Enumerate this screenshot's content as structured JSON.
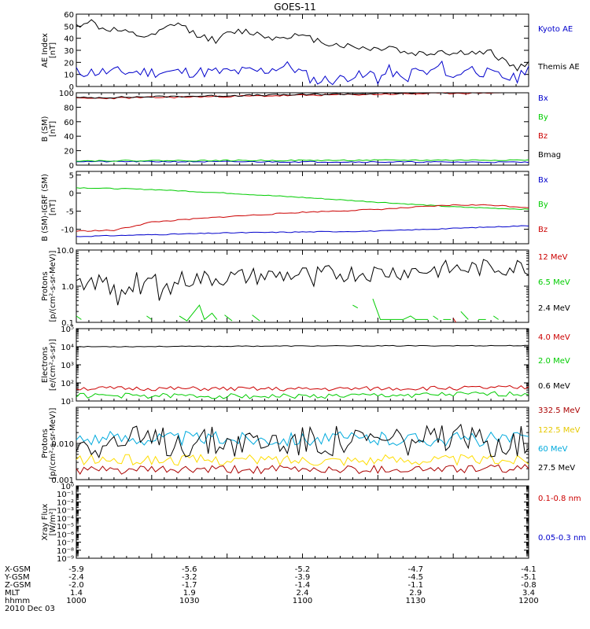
{
  "title": "GOES-11",
  "chart_data": [
    {
      "type": "line",
      "ylabel": "AE Index\n[nT]",
      "ylim": [
        0,
        60
      ],
      "ticks": [
        {
          "v": 0,
          "label": "0"
        },
        {
          "v": 10,
          "label": "10"
        },
        {
          "v": 20,
          "label": "20"
        },
        {
          "v": 30,
          "label": "30"
        },
        {
          "v": 40,
          "label": "40"
        },
        {
          "v": 50,
          "label": "50"
        },
        {
          "v": 60,
          "label": "60"
        }
      ],
      "series": [
        {
          "name": "Kyoto AE",
          "color": "#0000cc",
          "anchors": [
            [
              0,
              12
            ],
            [
              15,
              12
            ],
            [
              30,
              12
            ],
            [
              45,
              12
            ],
            [
              60,
              12
            ],
            [
              75,
              13
            ],
            [
              80,
              16
            ],
            [
              85,
              17
            ],
            [
              90,
              11
            ],
            [
              95,
              5
            ],
            [
              105,
              6
            ],
            [
              110,
              10
            ],
            [
              115,
              7
            ],
            [
              118,
              13
            ],
            [
              120,
              6
            ],
            [
              125,
              14
            ],
            [
              130,
              4
            ],
            [
              135,
              14
            ],
            [
              140,
              10
            ],
            [
              145,
              18
            ],
            [
              150,
              6
            ],
            [
              155,
              16
            ],
            [
              160,
              13
            ],
            [
              165,
              10
            ],
            [
              170,
              8
            ],
            [
              175,
              6
            ],
            [
              180,
              18
            ]
          ],
          "noise": 2.0,
          "seed": 11
        },
        {
          "name": "Themis AE",
          "color": "#000000",
          "anchors": [
            [
              0,
              50
            ],
            [
              5,
              55
            ],
            [
              10,
              48
            ],
            [
              15,
              47
            ],
            [
              20,
              44
            ],
            [
              25,
              42
            ],
            [
              30,
              41
            ],
            [
              35,
              47
            ],
            [
              40,
              53
            ],
            [
              45,
              46
            ],
            [
              50,
              42
            ],
            [
              55,
              38
            ],
            [
              60,
              43
            ],
            [
              65,
              46
            ],
            [
              70,
              45
            ],
            [
              75,
              42
            ],
            [
              80,
              40
            ],
            [
              85,
              43
            ],
            [
              90,
              41
            ],
            [
              95,
              39
            ],
            [
              100,
              36
            ],
            [
              110,
              33
            ],
            [
              120,
              31
            ],
            [
              125,
              34
            ],
            [
              130,
              28
            ],
            [
              140,
              27
            ],
            [
              145,
              30
            ],
            [
              150,
              27
            ],
            [
              155,
              29
            ],
            [
              160,
              27
            ],
            [
              165,
              28
            ],
            [
              170,
              22
            ],
            [
              175,
              15
            ],
            [
              180,
              18
            ]
          ],
          "noise": 1.2,
          "seed": 12
        }
      ]
    },
    {
      "type": "line",
      "ylabel": "B (SM)\n[nT]",
      "ylim": [
        0,
        100
      ],
      "ticks": [
        {
          "v": 0,
          "label": "0"
        },
        {
          "v": 20,
          "label": "20"
        },
        {
          "v": 40,
          "label": "40"
        },
        {
          "v": 60,
          "label": "60"
        },
        {
          "v": 80,
          "label": "80"
        },
        {
          "v": 100,
          "label": "100"
        }
      ],
      "series": [
        {
          "name": "Bx",
          "color": "#0000cc",
          "anchors": [
            [
              0,
              5
            ],
            [
              180,
              4
            ]
          ],
          "noise": 0.2,
          "seed": 21
        },
        {
          "name": "By",
          "color": "#00cc00",
          "anchors": [
            [
              0,
              6
            ],
            [
              180,
              7
            ]
          ],
          "noise": 0.2,
          "seed": 22
        },
        {
          "name": "Bz",
          "color": "#cc0000",
          "anchors": [
            [
              0,
              92
            ],
            [
              60,
              95
            ],
            [
              120,
              98
            ],
            [
              180,
              101
            ]
          ],
          "noise": 0.3,
          "seed": 23
        },
        {
          "name": "Bmag",
          "color": "#000000",
          "anchors": [
            [
              0,
              93
            ],
            [
              60,
              96
            ],
            [
              120,
              99
            ],
            [
              180,
              102
            ]
          ],
          "noise": 0.3,
          "seed": 24
        }
      ]
    },
    {
      "type": "line",
      "ylabel": "B (SM)-IGRF (SM)\n[nT]",
      "ylim": [
        -14,
        6
      ],
      "ticks": [
        {
          "v": -10,
          "label": "-10"
        },
        {
          "v": -5,
          "label": "-5"
        },
        {
          "v": 0,
          "label": "0"
        },
        {
          "v": 5,
          "label": "5"
        }
      ],
      "series": [
        {
          "name": "Bx",
          "color": "#0000cc",
          "anchors": [
            [
              0,
              -12
            ],
            [
              60,
              -11
            ],
            [
              120,
              -10.5
            ],
            [
              180,
              -9
            ]
          ],
          "noise": 0.15,
          "seed": 31
        },
        {
          "name": "By",
          "color": "#00cc00",
          "anchors": [
            [
              0,
              1.5
            ],
            [
              30,
              1.0
            ],
            [
              60,
              0
            ],
            [
              90,
              -1.2
            ],
            [
              120,
              -2.5
            ],
            [
              150,
              -3.8
            ],
            [
              180,
              -4.5
            ]
          ],
          "noise": 0.15,
          "seed": 32
        },
        {
          "name": "Bz",
          "color": "#cc0000",
          "anchors": [
            [
              0,
              -10.5
            ],
            [
              15,
              -10.3
            ],
            [
              30,
              -8
            ],
            [
              60,
              -6.5
            ],
            [
              90,
              -5.3
            ],
            [
              120,
              -4.5
            ],
            [
              150,
              -3.3
            ],
            [
              165,
              -3.3
            ],
            [
              180,
              -4
            ]
          ],
          "noise": 0.2,
          "seed": 33
        }
      ]
    },
    {
      "type": "line",
      "log": true,
      "ylabel": "Protons\n[p/(cm²-s-sr-MeV)]",
      "ylim": [
        0.1,
        10
      ],
      "ticks": [
        {
          "v": 0.1,
          "label": "0.1"
        },
        {
          "v": 1,
          "label": "1.0"
        },
        {
          "v": 10,
          "label": "10.0"
        }
      ],
      "series": [
        {
          "name": "12 MeV",
          "color": "#cc0000",
          "segments": [
            [
              [
                150,
                0.13
              ],
              [
                151,
                0.1
              ]
            ]
          ]
        },
        {
          "name": "6.5 MeV",
          "color": "#00cc00",
          "segments": [
            [
              [
                0,
                0.15
              ],
              [
                2,
                0.12
              ]
            ],
            [
              [
                28,
                0.15
              ],
              [
                30,
                0.12
              ]
            ],
            [
              [
                41,
                0.15
              ],
              [
                44,
                0.11
              ],
              [
                47,
                0.2
              ],
              [
                49,
                0.3
              ],
              [
                51,
                0.12
              ],
              [
                54,
                0.18
              ],
              [
                56,
                0.12
              ]
            ],
            [
              [
                59,
                0.16
              ],
              [
                62,
                0.11
              ]
            ],
            [
              [
                70,
                0.16
              ],
              [
                73,
                0.11
              ]
            ],
            [
              [
                110,
                0.3
              ],
              [
                112,
                0.25
              ]
            ],
            [
              [
                118,
                0.45
              ],
              [
                121,
                0.12
              ],
              [
                130,
                0.12
              ],
              [
                133,
                0.15
              ],
              [
                135,
                0.12
              ],
              [
                140,
                0.12
              ]
            ],
            [
              [
                142,
                0.15
              ],
              [
                144,
                0.12
              ]
            ],
            [
              [
                146,
                0.12
              ],
              [
                149,
                0.12
              ]
            ],
            [
              [
                153,
                0.2
              ],
              [
                156,
                0.12
              ]
            ],
            [
              [
                160,
                0.12
              ],
              [
                163,
                0.12
              ]
            ],
            [
              [
                166,
                0.15
              ],
              [
                168,
                0.12
              ]
            ]
          ]
        },
        {
          "name": "2.4 MeV",
          "color": "#000000",
          "anchors": [
            [
              0,
              1.2
            ],
            [
              40,
              1.5
            ],
            [
              80,
              2.0
            ],
            [
              120,
              2.4
            ],
            [
              150,
              3.0
            ],
            [
              180,
              3.5
            ]
          ],
          "noise": 0.25,
          "log": true,
          "dips": [
            [
              3,
              0.8
            ],
            [
              10,
              0.5
            ],
            [
              14,
              0.6
            ],
            [
              17,
              0.3
            ],
            [
              20,
              0.6
            ],
            [
              23,
              0.7
            ],
            [
              26,
              0.6
            ],
            [
              33,
              0.4
            ],
            [
              38,
              0.6
            ],
            [
              46,
              0.8
            ],
            [
              58,
              0.8
            ],
            [
              70,
              0.7
            ],
            [
              82,
              0.9
            ],
            [
              95,
              1.0
            ]
          ],
          "seed": 43
        }
      ]
    },
    {
      "type": "line",
      "log": true,
      "ylabel": "Electrons\n[e/(cm²-s-sr)]",
      "ylim": [
        10,
        100000
      ],
      "ticks": [
        {
          "v": 10,
          "label": "10¹"
        },
        {
          "v": 100,
          "label": "10²"
        },
        {
          "v": 1000,
          "label": "10³"
        },
        {
          "v": 10000,
          "label": "10⁴"
        },
        {
          "v": 100000,
          "label": "10⁵"
        }
      ],
      "series": [
        {
          "name": "4.0 MeV",
          "color": "#cc0000",
          "anchors": [
            [
              0,
              50
            ],
            [
              90,
              45
            ],
            [
              180,
              55
            ]
          ],
          "noise": 0.12,
          "log": true,
          "seed": 51
        },
        {
          "name": "2.0 MeV",
          "color": "#00cc00",
          "anchors": [
            [
              0,
              20
            ],
            [
              90,
              18
            ],
            [
              180,
              25
            ]
          ],
          "noise": 0.14,
          "log": true,
          "seed": 52
        },
        {
          "name": "0.6 MeV",
          "color": "#000000",
          "anchors": [
            [
              0,
              10000
            ],
            [
              90,
              11000
            ],
            [
              180,
              11500
            ]
          ],
          "noise": 0.02,
          "log": true,
          "seed": 53
        }
      ]
    },
    {
      "type": "line",
      "log": true,
      "ylabel": "Protons\n[p/(cm²-s-sr-MeV)]",
      "ylim": [
        0.001,
        0.1
      ],
      "ticks": [
        {
          "v": 0.001,
          "label": "0.001"
        },
        {
          "v": 0.01,
          "label": "0.010"
        }
      ],
      "series": [
        {
          "name": "332.5 MeV",
          "color": "#aa0000",
          "anchors": [
            [
              0,
              0.0018
            ],
            [
              180,
              0.002
            ]
          ],
          "noise": 0.12,
          "log": true,
          "seed": 61
        },
        {
          "name": "122.5 MeV",
          "color": "#ffdd00",
          "anchors": [
            [
              0,
              0.0035
            ],
            [
              180,
              0.0035
            ]
          ],
          "noise": 0.15,
          "log": true,
          "seed": 62
        },
        {
          "name": "60 MeV",
          "color": "#00aadd",
          "anchors": [
            [
              0,
              0.014
            ],
            [
              180,
              0.013
            ]
          ],
          "noise": 0.2,
          "log": true,
          "seed": 63
        },
        {
          "name": "27.5 MeV",
          "color": "#000000",
          "anchors": [
            [
              0,
              0.011
            ],
            [
              180,
              0.012
            ]
          ],
          "noise": 0.45,
          "log": true,
          "seed": 64
        }
      ]
    },
    {
      "type": "line",
      "log": true,
      "ylabel": "Xray Flux\n[W/m²]",
      "ylim": [
        1e-09,
        1
      ],
      "ticks": [
        {
          "v": 1e-09,
          "label": "10⁻⁹"
        },
        {
          "v": 1e-08,
          "label": "10⁻⁸"
        },
        {
          "v": 1e-07,
          "label": "10⁻⁷"
        },
        {
          "v": 1e-06,
          "label": "10⁻⁶"
        },
        {
          "v": 1e-05,
          "label": "10⁻⁵"
        },
        {
          "v": 0.0001,
          "label": "10⁻⁴"
        },
        {
          "v": 0.001,
          "label": "10⁻³"
        },
        {
          "v": 0.01,
          "label": "10⁻²"
        },
        {
          "v": 0.1,
          "label": "10⁻¹"
        },
        {
          "v": 1,
          "label": "10⁰"
        }
      ],
      "series": [
        {
          "name": "0.1-0.8 nm",
          "color": "#cc0000"
        },
        {
          "name": "0.05-0.3 nm",
          "color": "#0000cc"
        }
      ]
    }
  ],
  "x_axis": {
    "time_range": [
      "1000",
      "1200"
    ],
    "columns": [
      {
        "x": 0,
        "xgsm": "-5.9",
        "ygsm": "-2.4",
        "zgsm": "-2.0",
        "mlt": "1.4",
        "hhmm": "1000"
      },
      {
        "x": 30,
        "xgsm": "-5.6",
        "ygsm": "-3.2",
        "zgsm": "-1.7",
        "mlt": "1.9",
        "hhmm": "1030"
      },
      {
        "x": 60,
        "xgsm": "-5.2",
        "ygsm": "-3.9",
        "zgsm": "-1.4",
        "mlt": "2.4",
        "hhmm": "1100"
      },
      {
        "x": 90,
        "xgsm": "-4.7",
        "ygsm": "-4.5",
        "zgsm": "-1.1",
        "mlt": "2.9",
        "hhmm": "1130"
      },
      {
        "x": 120,
        "xgsm": "-4.1",
        "ygsm": "-5.1",
        "zgsm": "-0.8",
        "mlt": "3.4",
        "hhmm": "1200"
      }
    ],
    "row_labels": [
      "X-GSM",
      "Y-GSM",
      "Z-GSM",
      "MLT",
      "hhmm"
    ],
    "date": "2010 Dec 03"
  }
}
